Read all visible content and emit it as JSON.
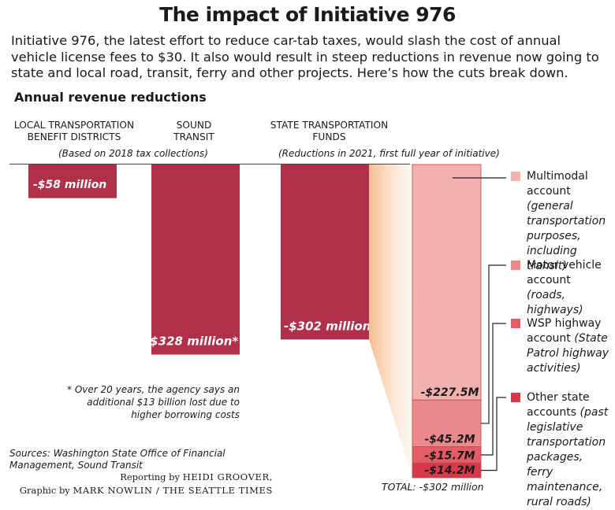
{
  "header": {
    "title": "The impact of Initiative 976",
    "intro": "Initiative 976, the latest effort to reduce car-tab taxes, would slash the cost of annual vehicle license fees to $30. It also would result in steep reductions in revenue now going to state and local road, transit, ferry and other projects. Here’s how the cuts break down.",
    "section_label": "Annual revenue reductions"
  },
  "columns": {
    "local_heading": "LOCAL TRANSPORTATION BENEFIT DISTRICTS",
    "sound_heading": "SOUND TRANSIT",
    "state_heading": "STATE TRANSPORTATION FUNDS",
    "note_2018": "(Based on 2018 tax collections)",
    "note_2021": "(Reductions in 2021, first full year of initiative)"
  },
  "chart_data": {
    "type": "bar",
    "categories": [
      "LOCAL TRANSPORTATION BENEFIT DISTRICTS",
      "SOUND TRANSIT",
      "STATE TRANSPORTATION FUNDS"
    ],
    "values": [
      -58,
      -328,
      -302
    ],
    "value_labels": [
      "-$58 million",
      "-$328 million*",
      "-$302 million"
    ],
    "unit": "million",
    "ylim": [
      -330,
      0
    ],
    "breakdown": {
      "of": "STATE TRANSPORTATION FUNDS",
      "values": [
        -227.5,
        -45.2,
        -15.7,
        -14.2
      ],
      "value_labels": [
        "-$227.5M",
        "-$45.2M",
        "-$15.7M",
        "-$14.2M"
      ],
      "total_label": "TOTAL: -$302 million",
      "colors": [
        "#f2b0ae",
        "#ea8a8c",
        "#e25d66",
        "#d93848"
      ]
    },
    "bar_color": "#b0304a",
    "footnote": "* Over 20 years, the agency says an additional $13 billion lost due to higher borrowing costs"
  },
  "legend": [
    {
      "name": "Multimodal account",
      "desc": "(general transportation purposes, including transit)",
      "color": "#f2b0ae"
    },
    {
      "name": "Motor vehicle account",
      "desc": "(roads, highways)",
      "color": "#ea8a8c"
    },
    {
      "name": "WSP highway account",
      "desc": "(State Patrol highway activities)",
      "color": "#e25d66"
    },
    {
      "name": "Other state accounts",
      "desc": "(past legislative transportation packages, ferry maintenance, rural roads)",
      "color": "#d93848"
    }
  ],
  "sources": "Sources: Washington State Office of Financial Management, Sound Transit",
  "credits": {
    "reporting_prefix": "Reporting by",
    "reporter": "HEIDI GROOVER,",
    "graphic_prefix": "Graphic by",
    "artist": "MARK NOWLIN / THE SEATTLE TIMES"
  }
}
